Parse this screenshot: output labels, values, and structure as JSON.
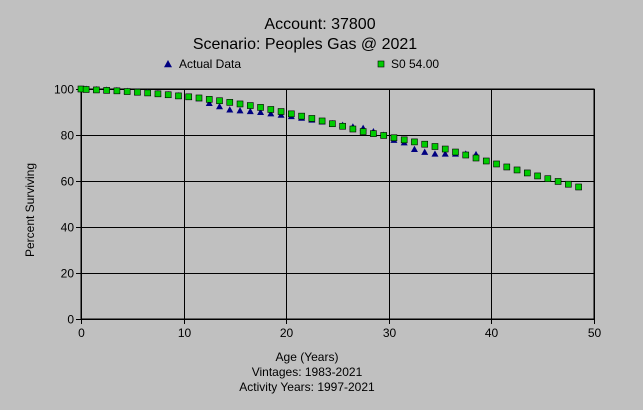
{
  "chart_data": {
    "type": "scatter",
    "title": "Account: 37800",
    "subtitle": "Scenario: Peoples Gas @ 2021",
    "xlabel": "Age (Years)",
    "ylabel": "Percent Surviving",
    "footnotes": [
      "Vintages: 1983-2021",
      "Activity Years: 1997-2021"
    ],
    "xlim": [
      0,
      50
    ],
    "ylim": [
      0,
      100
    ],
    "xticks": [
      0,
      10,
      20,
      30,
      40,
      50
    ],
    "yticks": [
      0,
      20,
      40,
      60,
      80,
      100
    ],
    "grid": true,
    "legend_position": "top",
    "series": [
      {
        "name": "Actual Data",
        "marker": "triangle",
        "color": "#000080",
        "x": [
          0,
          0.5,
          1.5,
          2.5,
          3.5,
          4.5,
          5.5,
          6.5,
          7.5,
          8.5,
          9.5,
          10.5,
          11.5,
          12.5,
          13.5,
          14.5,
          15.5,
          16.5,
          17.5,
          18.5,
          19.5,
          20.5,
          21.5,
          22.5,
          23.5,
          24.5,
          25.5,
          26.5,
          27.5,
          28.5,
          29.5,
          30.5,
          31.5,
          32.5,
          33.5,
          34.5,
          35.5,
          36.5,
          37.5,
          38.5
        ],
        "y": [
          100,
          100,
          99.8,
          99.6,
          99.4,
          99.1,
          98.8,
          98.5,
          98.1,
          97.6,
          97.1,
          96.5,
          95.9,
          93.8,
          92.4,
          91.0,
          90.6,
          90.3,
          89.9,
          89.3,
          88.7,
          88.1,
          87.4,
          86.6,
          85.8,
          85.0,
          84.3,
          83.6,
          83.0,
          81.5,
          80.0,
          77.8,
          76.7,
          73.8,
          72.6,
          71.8,
          71.8,
          71.8,
          71.8,
          71.6
        ]
      },
      {
        "name": "S0 54.00",
        "marker": "square",
        "color": "#00cc00",
        "x": [
          0,
          0.5,
          1.5,
          2.5,
          3.5,
          4.5,
          5.5,
          6.5,
          7.5,
          8.5,
          9.5,
          10.5,
          11.5,
          12.5,
          13.5,
          14.5,
          15.5,
          16.5,
          17.5,
          18.5,
          19.5,
          20.5,
          21.5,
          22.5,
          23.5,
          24.5,
          25.5,
          26.5,
          27.5,
          28.5,
          29.5,
          30.5,
          31.5,
          32.5,
          33.5,
          34.5,
          35.5,
          36.5,
          37.5,
          38.5,
          39.5,
          40.5,
          41.5,
          42.5,
          43.5,
          44.5,
          45.5,
          46.5,
          47.5,
          48.5
        ],
        "y": [
          100,
          99.8,
          99.6,
          99.4,
          99.2,
          98.9,
          98.6,
          98.3,
          97.9,
          97.5,
          97.0,
          96.6,
          96.1,
          95.5,
          94.9,
          94.2,
          93.5,
          92.8,
          92.0,
          91.1,
          90.2,
          89.2,
          88.2,
          87.2,
          86.1,
          84.9,
          83.8,
          82.6,
          81.5,
          80.6,
          79.8,
          78.8,
          77.9,
          77.0,
          76.0,
          75.0,
          73.9,
          72.6,
          71.3,
          70.0,
          68.7,
          67.4,
          66.1,
          64.8,
          63.5,
          62.2,
          61.0,
          59.8,
          58.6,
          57.4
        ]
      }
    ]
  }
}
